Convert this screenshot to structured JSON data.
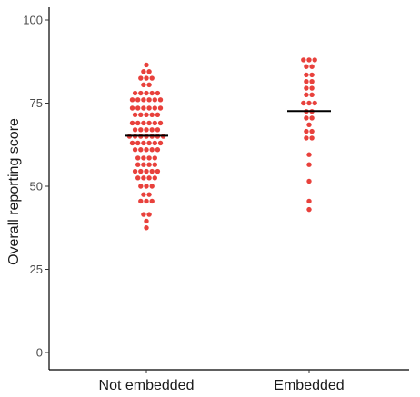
{
  "chart_data": {
    "type": "scatter",
    "subtype": "dot-plot",
    "title": "",
    "xlabel": "",
    "ylabel": "Overall reporting score",
    "ylim": [
      -5,
      104
    ],
    "yticks": [
      0,
      25,
      50,
      75,
      100
    ],
    "categories": [
      "Not embedded",
      "Embedded"
    ],
    "grid": false,
    "legend": "none",
    "point_color": "#e8413c",
    "median_color": "#000000",
    "groups": [
      {
        "category": "Not embedded",
        "median": 65.2,
        "points": [
          {
            "y": 86.5,
            "n": 1
          },
          {
            "y": 84.5,
            "n": 2
          },
          {
            "y": 82.5,
            "n": 3
          },
          {
            "y": 80.5,
            "n": 2
          },
          {
            "y": 78.0,
            "n": 5
          },
          {
            "y": 76.0,
            "n": 6
          },
          {
            "y": 73.5,
            "n": 6
          },
          {
            "y": 71.5,
            "n": 5
          },
          {
            "y": 69.0,
            "n": 6
          },
          {
            "y": 67.0,
            "n": 5
          },
          {
            "y": 65.0,
            "n": 7
          },
          {
            "y": 63.0,
            "n": 6
          },
          {
            "y": 61.0,
            "n": 5
          },
          {
            "y": 58.5,
            "n": 4
          },
          {
            "y": 56.5,
            "n": 4
          },
          {
            "y": 54.5,
            "n": 5
          },
          {
            "y": 52.5,
            "n": 4
          },
          {
            "y": 50.0,
            "n": 3
          },
          {
            "y": 47.5,
            "n": 2
          },
          {
            "y": 45.5,
            "n": 3
          },
          {
            "y": 41.5,
            "n": 2
          },
          {
            "y": 39.5,
            "n": 1
          },
          {
            "y": 37.5,
            "n": 1
          }
        ]
      },
      {
        "category": "Embedded",
        "median": 72.6,
        "points": [
          {
            "y": 88.0,
            "n": 3
          },
          {
            "y": 86.0,
            "n": 2
          },
          {
            "y": 83.5,
            "n": 2
          },
          {
            "y": 81.5,
            "n": 2
          },
          {
            "y": 79.5,
            "n": 2
          },
          {
            "y": 77.5,
            "n": 2
          },
          {
            "y": 75.0,
            "n": 3
          },
          {
            "y": 72.5,
            "n": 2
          },
          {
            "y": 70.5,
            "n": 2
          },
          {
            "y": 68.5,
            "n": 1
          },
          {
            "y": 66.5,
            "n": 2
          },
          {
            "y": 64.5,
            "n": 2
          },
          {
            "y": 59.5,
            "n": 1
          },
          {
            "y": 56.5,
            "n": 1
          },
          {
            "y": 51.5,
            "n": 1
          },
          {
            "y": 45.5,
            "n": 1
          },
          {
            "y": 43.0,
            "n": 1
          }
        ]
      }
    ]
  }
}
